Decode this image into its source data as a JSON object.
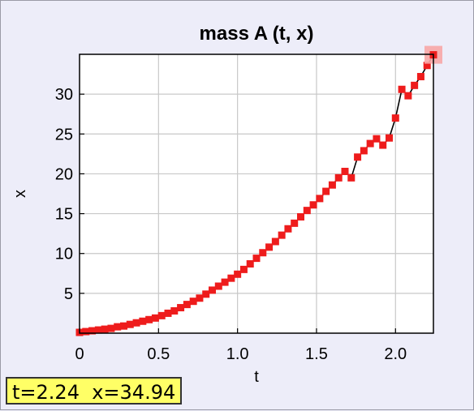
{
  "chart_data": {
    "type": "scatter",
    "title": "mass A (t, x)",
    "xlabel": "t",
    "ylabel": "x",
    "xlim": [
      0,
      2.24
    ],
    "ylim": [
      0,
      35
    ],
    "xticks": [
      "0",
      "0.5",
      "1.0",
      "1.5",
      "2.0"
    ],
    "xtick_values": [
      0,
      0.5,
      1.0,
      1.5,
      2.0
    ],
    "yticks": [
      "5",
      "10",
      "15",
      "20",
      "25",
      "30"
    ],
    "ytick_values": [
      5,
      10,
      15,
      20,
      25,
      30
    ],
    "grid": true,
    "series": [
      {
        "marker": "square",
        "color": "#ee1c1c",
        "line_color": "#000000",
        "x": [
          0.0,
          0.04,
          0.08,
          0.12,
          0.16,
          0.2,
          0.24,
          0.28,
          0.32,
          0.36,
          0.4,
          0.44,
          0.48,
          0.52,
          0.56,
          0.6,
          0.64,
          0.68,
          0.72,
          0.76,
          0.8,
          0.84,
          0.88,
          0.92,
          0.96,
          1.0,
          1.04,
          1.08,
          1.12,
          1.16,
          1.2,
          1.24,
          1.28,
          1.32,
          1.36,
          1.4,
          1.44,
          1.48,
          1.52,
          1.56,
          1.6,
          1.64,
          1.68,
          1.72,
          1.76,
          1.8,
          1.84,
          1.88,
          1.92,
          1.96,
          2.0,
          2.04,
          2.08,
          2.12,
          2.16,
          2.2,
          2.24
        ],
        "y": [
          0.1,
          0.2,
          0.3,
          0.4,
          0.5,
          0.6,
          0.8,
          0.9,
          1.1,
          1.3,
          1.5,
          1.7,
          1.9,
          2.2,
          2.5,
          2.8,
          3.2,
          3.6,
          4.0,
          4.4,
          4.9,
          5.4,
          5.9,
          6.4,
          6.9,
          7.4,
          8.0,
          8.7,
          9.4,
          10.1,
          10.8,
          11.5,
          12.3,
          13.1,
          13.8,
          14.6,
          15.4,
          16.1,
          16.9,
          17.8,
          18.6,
          19.5,
          20.3,
          19.5,
          22.1,
          22.9,
          23.8,
          24.4,
          23.6,
          24.5,
          27.0,
          30.6,
          29.8,
          31.1,
          32.2,
          33.6,
          34.9
        ]
      }
    ],
    "highlight": {
      "x": 2.24,
      "y": 34.94,
      "color": "#f7a6a6"
    }
  },
  "readout": {
    "text": "t=2.24  x=34.94"
  }
}
